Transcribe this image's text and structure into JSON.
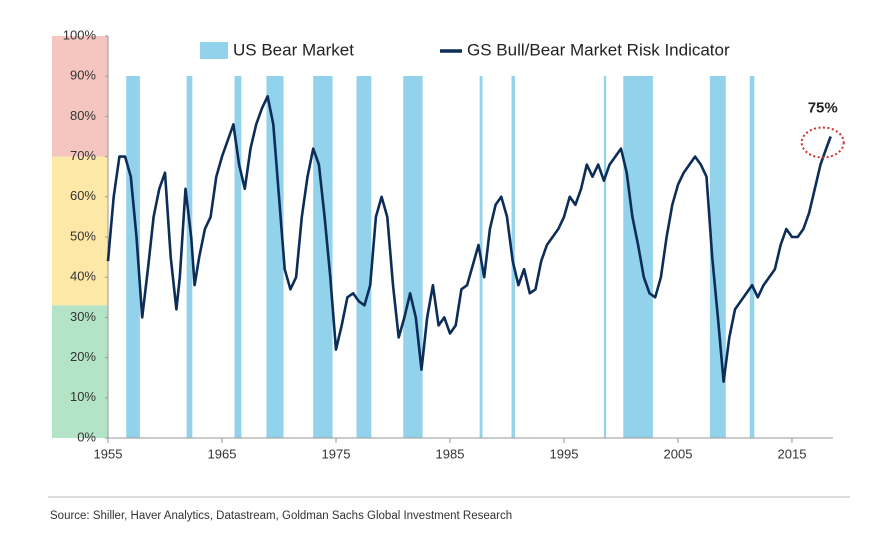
{
  "chart_data": {
    "type": "line",
    "xlim": [
      1955,
      2018.6
    ],
    "ylim": [
      0,
      100
    ],
    "xticks": [
      1955,
      1965,
      1975,
      1985,
      1995,
      2005,
      2015
    ],
    "yticks": [
      {
        "value": 0,
        "label": "0%"
      },
      {
        "value": 10,
        "label": "10%"
      },
      {
        "value": 20,
        "label": "20%"
      },
      {
        "value": 30,
        "label": "30%"
      },
      {
        "value": 40,
        "label": "40%"
      },
      {
        "value": 50,
        "label": "50%"
      },
      {
        "value": 60,
        "label": "60%"
      },
      {
        "value": 70,
        "label": "70%"
      },
      {
        "value": 80,
        "label": "80%"
      },
      {
        "value": 90,
        "label": "90%"
      },
      {
        "value": 100,
        "label": "100%"
      }
    ],
    "zones": [
      {
        "from": 0,
        "to": 33,
        "color": "#b4e4c6"
      },
      {
        "from": 33,
        "to": 70,
        "color": "#fde8a8"
      },
      {
        "from": 70,
        "to": 100,
        "color": "#f5c6bf"
      }
    ],
    "bear_market": {
      "name": "US Bear Market",
      "color": "#93d2eb",
      "ranges": [
        [
          1956.6,
          1957.8
        ],
        [
          1961.9,
          1962.4
        ],
        [
          1966.1,
          1966.7
        ],
        [
          1968.9,
          1970.4
        ],
        [
          1973.0,
          1974.7
        ],
        [
          1976.8,
          1978.1
        ],
        [
          1980.9,
          1982.6
        ],
        [
          1987.6,
          1987.85
        ],
        [
          1990.4,
          1990.7
        ],
        [
          1998.5,
          1998.7
        ],
        [
          2000.2,
          2002.8
        ],
        [
          2007.8,
          2009.2
        ],
        [
          2011.3,
          2011.7
        ]
      ]
    },
    "x": [
      1955,
      1955.5,
      1956,
      1956.5,
      1957,
      1957.5,
      1958,
      1958.5,
      1959,
      1959.5,
      1960,
      1960.5,
      1961,
      1961.3,
      1961.8,
      1962.3,
      1962.6,
      1963,
      1963.5,
      1964,
      1964.5,
      1965,
      1965.5,
      1966,
      1966.5,
      1967,
      1967.5,
      1968,
      1968.5,
      1969,
      1969.5,
      1970,
      1970.5,
      1971,
      1971.5,
      1972,
      1972.5,
      1973,
      1973.5,
      1974,
      1974.5,
      1975,
      1975.5,
      1976,
      1976.5,
      1977,
      1977.5,
      1978,
      1978.5,
      1979,
      1979.5,
      1980,
      1980.5,
      1981,
      1981.5,
      1982,
      1982.5,
      1983,
      1983.5,
      1984,
      1984.5,
      1985,
      1985.5,
      1986,
      1986.5,
      1987,
      1987.5,
      1988,
      1988.5,
      1989,
      1989.5,
      1990,
      1990.5,
      1991,
      1991.5,
      1992,
      1992.5,
      1993,
      1993.5,
      1994,
      1994.5,
      1995,
      1995.5,
      1996,
      1996.5,
      1997,
      1997.5,
      1998,
      1998.5,
      1999,
      1999.5,
      2000,
      2000.5,
      2001,
      2001.5,
      2002,
      2002.5,
      2003,
      2003.5,
      2004,
      2004.5,
      2005,
      2005.5,
      2006,
      2006.5,
      2007,
      2007.5,
      2008,
      2008.5,
      2009,
      2009.5,
      2010,
      2010.5,
      2011,
      2011.5,
      2012,
      2012.5,
      2013,
      2013.5,
      2014,
      2014.5,
      2015,
      2015.5,
      2016,
      2016.5,
      2017,
      2017.5,
      2018,
      2018.4
    ],
    "series": [
      {
        "name": "GS Bull/Bear Market Risk Indicator",
        "color": "#0c2d57",
        "values": [
          44,
          60,
          70,
          70,
          65,
          50,
          30,
          42,
          55,
          62,
          66,
          45,
          32,
          40,
          62,
          50,
          38,
          45,
          52,
          55,
          65,
          70,
          74,
          78,
          68,
          62,
          72,
          78,
          82,
          85,
          78,
          60,
          42,
          37,
          40,
          55,
          65,
          72,
          68,
          55,
          40,
          22,
          28,
          35,
          36,
          34,
          33,
          38,
          55,
          60,
          55,
          38,
          25,
          30,
          36,
          30,
          17,
          30,
          38,
          28,
          30,
          26,
          28,
          37,
          38,
          43,
          48,
          40,
          52,
          58,
          60,
          55,
          44,
          38,
          42,
          36,
          37,
          44,
          48,
          50,
          52,
          55,
          60,
          58,
          62,
          68,
          65,
          68,
          64,
          68,
          70,
          72,
          66,
          55,
          48,
          40,
          36,
          35,
          40,
          50,
          58,
          63,
          66,
          68,
          70,
          68,
          65,
          45,
          30,
          14,
          25,
          32,
          34,
          36,
          38,
          35,
          38,
          40,
          42,
          48,
          52,
          50,
          50,
          52,
          56,
          62,
          68,
          72,
          75
        ]
      }
    ],
    "annotation": {
      "text": "75%",
      "x": 2018.4,
      "y": 75,
      "color": "#d0312d"
    },
    "source": "Source: Shiller, Haver Analytics, Datastream, Goldman Sachs Global Investment Research"
  }
}
